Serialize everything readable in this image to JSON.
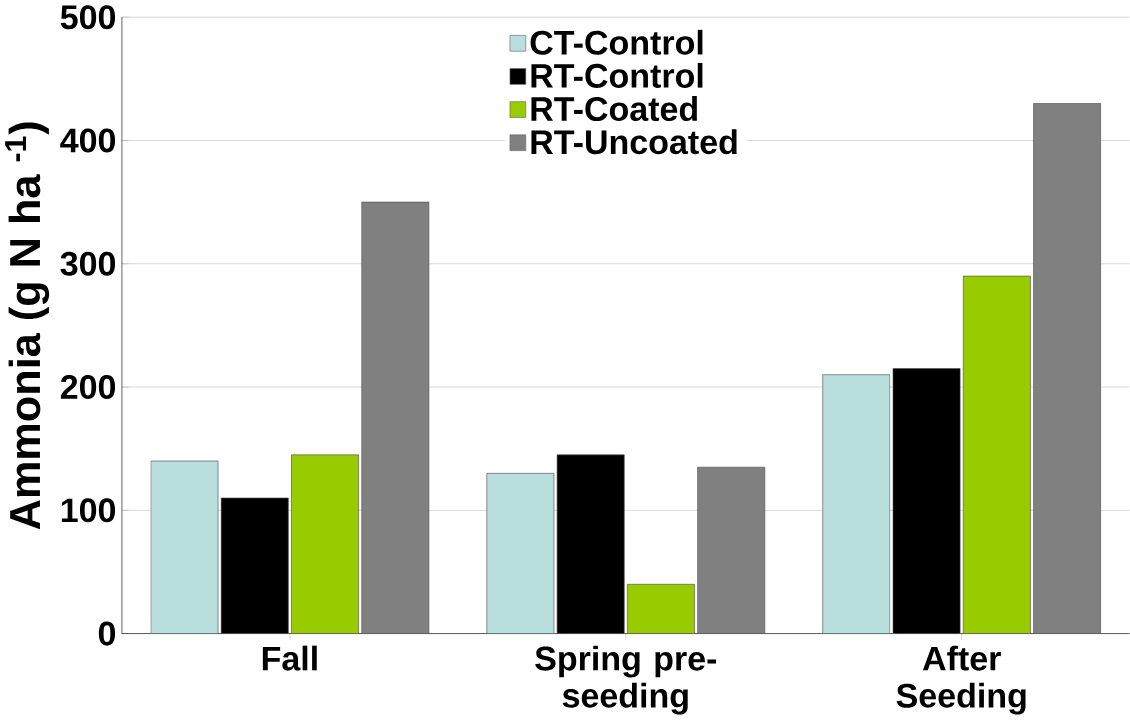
{
  "chart_data": {
    "type": "bar",
    "ylabel": "Ammonia (g N ha $^{-1}$)",
    "categories": [
      "Fall",
      "Spring pre-seeding",
      "After Seeding"
    ],
    "series": [
      {
        "name": "CT-Control",
        "color": "#b8dede",
        "values": [
          140,
          130,
          210
        ]
      },
      {
        "name": "RT-Control",
        "color": "#000000",
        "values": [
          110,
          145,
          215
        ]
      },
      {
        "name": "RT-Coated",
        "color": "#99cc00",
        "values": [
          145,
          40,
          290
        ]
      },
      {
        "name": "RT-Uncoated",
        "color": "#808080",
        "values": [
          350,
          135,
          430
        ]
      }
    ],
    "ylim": [
      0,
      500
    ],
    "yticks": [
      0,
      100,
      200,
      300,
      400,
      500
    ],
    "grid": "y",
    "legend": "top"
  }
}
